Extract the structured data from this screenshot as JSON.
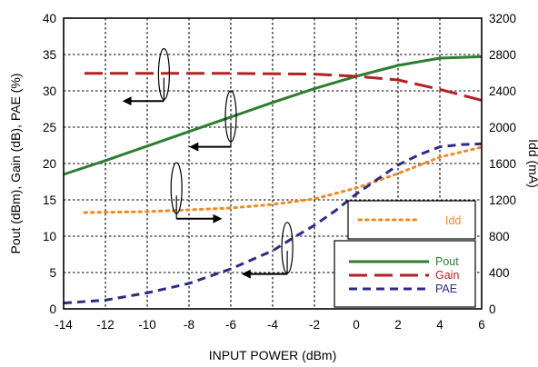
{
  "chart_data": {
    "type": "line",
    "xlabel": "INPUT POWER (dBm)",
    "ylabel_left": "Pout (dBm), Gain (dB), PAE (%)",
    "ylabel_right": "Idd (mA)",
    "xlim": [
      -14,
      6
    ],
    "ylim_left": [
      0,
      40
    ],
    "ylim_right": [
      0,
      3200
    ],
    "x_ticks": [
      "-14",
      "-12",
      "-10",
      "-8",
      "-6",
      "-4",
      "-2",
      "0",
      "2",
      "4",
      "6"
    ],
    "y_ticks_left": [
      "0",
      "5",
      "10",
      "15",
      "20",
      "25",
      "30",
      "35",
      "40"
    ],
    "y_ticks_right": [
      "0",
      "400",
      "800",
      "1200",
      "1600",
      "2000",
      "2400",
      "2800",
      "3200"
    ],
    "grid": true,
    "legend_placement": "bottom-right",
    "series": [
      {
        "name": "Pout",
        "axis": "left",
        "color": "#2e7d32",
        "style": "solid",
        "x": [
          -14,
          -12,
          -10,
          -8,
          -6,
          -4,
          -2,
          0,
          2,
          4,
          6
        ],
        "y": [
          18.5,
          20.4,
          22.4,
          24.4,
          26.4,
          28.4,
          30.3,
          32.0,
          33.5,
          34.5,
          34.7
        ]
      },
      {
        "name": "Gain",
        "axis": "left",
        "color": "#b22222",
        "style": "long-dash",
        "x": [
          -13,
          -10,
          -6,
          -2,
          0,
          2,
          4,
          6
        ],
        "y": [
          32.4,
          32.4,
          32.4,
          32.3,
          32.0,
          31.5,
          30.2,
          28.7
        ]
      },
      {
        "name": "Idd",
        "axis": "right",
        "color": "#f08a24",
        "style": "dotted",
        "x": [
          -13,
          -10,
          -8,
          -6,
          -4,
          -2,
          0,
          2,
          4,
          6
        ],
        "y": [
          1060,
          1070,
          1090,
          1110,
          1150,
          1210,
          1330,
          1490,
          1670,
          1780
        ]
      },
      {
        "name": "PAE",
        "axis": "left",
        "color": "#2c2c84",
        "style": "short-dash",
        "x": [
          -14,
          -12,
          -10,
          -8,
          -6,
          -4,
          -3,
          -2,
          -1,
          0,
          1,
          2,
          3,
          4,
          5,
          6
        ],
        "y": [
          0.8,
          1.2,
          2.2,
          3.5,
          5.5,
          8.0,
          9.8,
          11.5,
          13.5,
          15.8,
          17.8,
          19.8,
          21.2,
          22.3,
          22.6,
          22.7
        ]
      }
    ],
    "legend_idd": "Idd",
    "legend_main": [
      "Pout",
      "Gain",
      "PAE"
    ]
  }
}
